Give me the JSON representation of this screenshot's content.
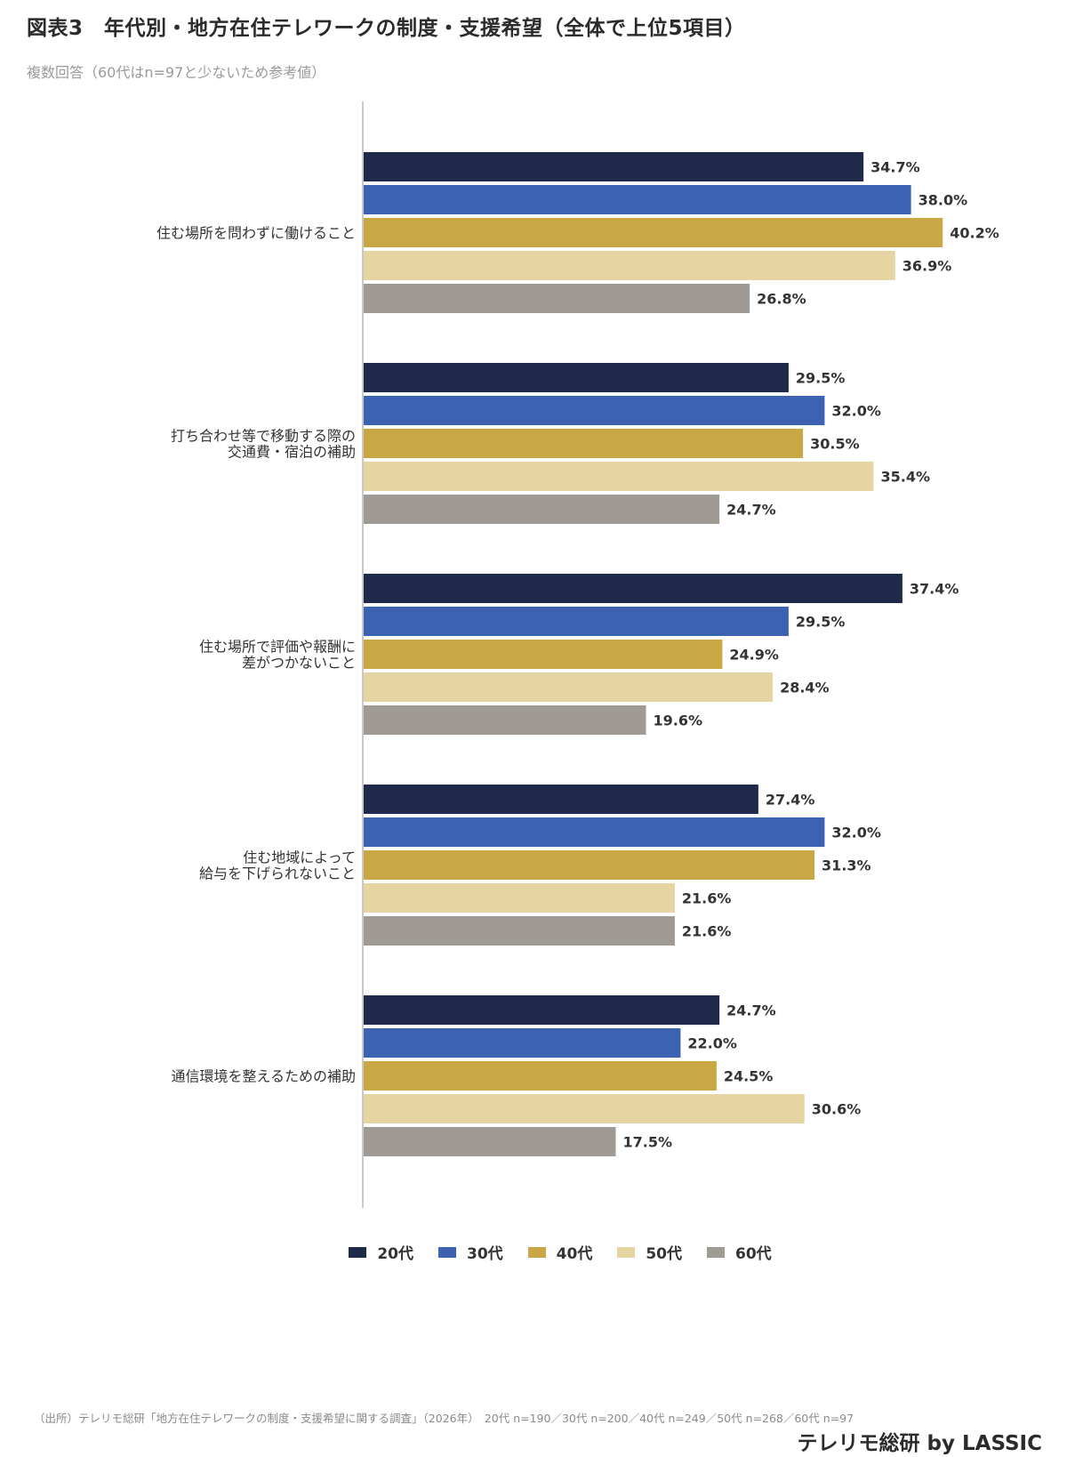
{
  "title": "図表3　年代別・地方在住テレワークの制度・支援希望（全体で上位5項目）",
  "subtitle": "複数回答（60代はn=97と少ないため参考値）",
  "footnote": "（出所）テレリモ総研「地方在住テレワークの制度・支援希望に関する調査」（2026年）　20代 n=190／30代 n=200／40代 n=249／50代 n=268／60代 n=97",
  "brand": "テレリモ総研 by LASSIC",
  "chart_data": {
    "type": "bar",
    "orientation": "horizontal",
    "categories": [
      [
        "住む場所を問わずに働けること"
      ],
      [
        "打ち合わせ等で移動する際の",
        "交通費・宿泊の補助"
      ],
      [
        "住む場所で評価や報酬に",
        "差がつかないこと"
      ],
      [
        "住む地域によって",
        "給与を下げられないこと"
      ],
      [
        "通信環境を整えるための補助"
      ]
    ],
    "series": [
      {
        "name": "20代",
        "color": "#1f2a4a",
        "values": [
          34.7,
          29.5,
          37.4,
          27.4,
          24.7
        ]
      },
      {
        "name": "30代",
        "color": "#3c63b1",
        "values": [
          38.0,
          32.0,
          29.5,
          32.0,
          22.0
        ]
      },
      {
        "name": "40代",
        "color": "#c9a744",
        "values": [
          40.2,
          30.5,
          24.9,
          31.3,
          24.5
        ]
      },
      {
        "name": "50代",
        "color": "#e6d4a2",
        "values": [
          36.9,
          35.4,
          28.4,
          21.6,
          30.6
        ]
      },
      {
        "name": "60代",
        "color": "#a09a95",
        "values": [
          26.8,
          24.7,
          19.6,
          21.6,
          17.5
        ]
      }
    ],
    "value_suffix": "%",
    "xlim": [
      0,
      100
    ],
    "grid": false,
    "legend_position": "bottom"
  }
}
